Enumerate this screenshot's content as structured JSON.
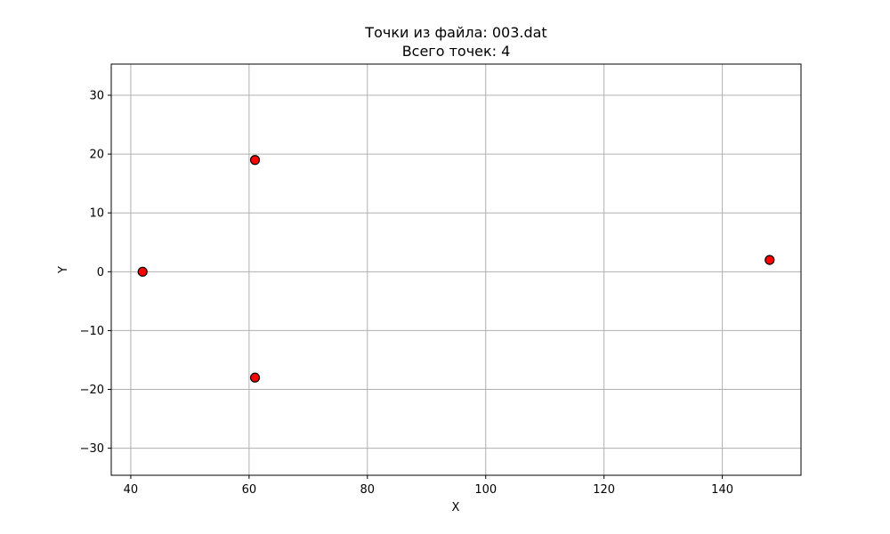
{
  "chart_data": {
    "type": "scatter",
    "title_lines": [
      "Точки из файла: 003.dat",
      "Всего точек: 4"
    ],
    "xlabel": "X",
    "ylabel": "Y",
    "xlim": [
      36.7,
      153.3
    ],
    "ylim": [
      -34.6,
      35.3
    ],
    "xticks": [
      40,
      60,
      80,
      100,
      120,
      140
    ],
    "yticks": [
      -30,
      -20,
      -10,
      0,
      10,
      20,
      30
    ],
    "xtick_labels": [
      "40",
      "60",
      "80",
      "100",
      "120",
      "140"
    ],
    "ytick_labels": [
      "−30",
      "−20",
      "−10",
      "0",
      "10",
      "20",
      "30"
    ],
    "grid": true,
    "points": [
      {
        "x": 42,
        "y": 0
      },
      {
        "x": 61,
        "y": 19
      },
      {
        "x": 61,
        "y": -18
      },
      {
        "x": 148,
        "y": 2
      }
    ],
    "marker_fill": "#ff0000",
    "marker_edge": "#000000",
    "grid_color": "#b0b0b0"
  }
}
